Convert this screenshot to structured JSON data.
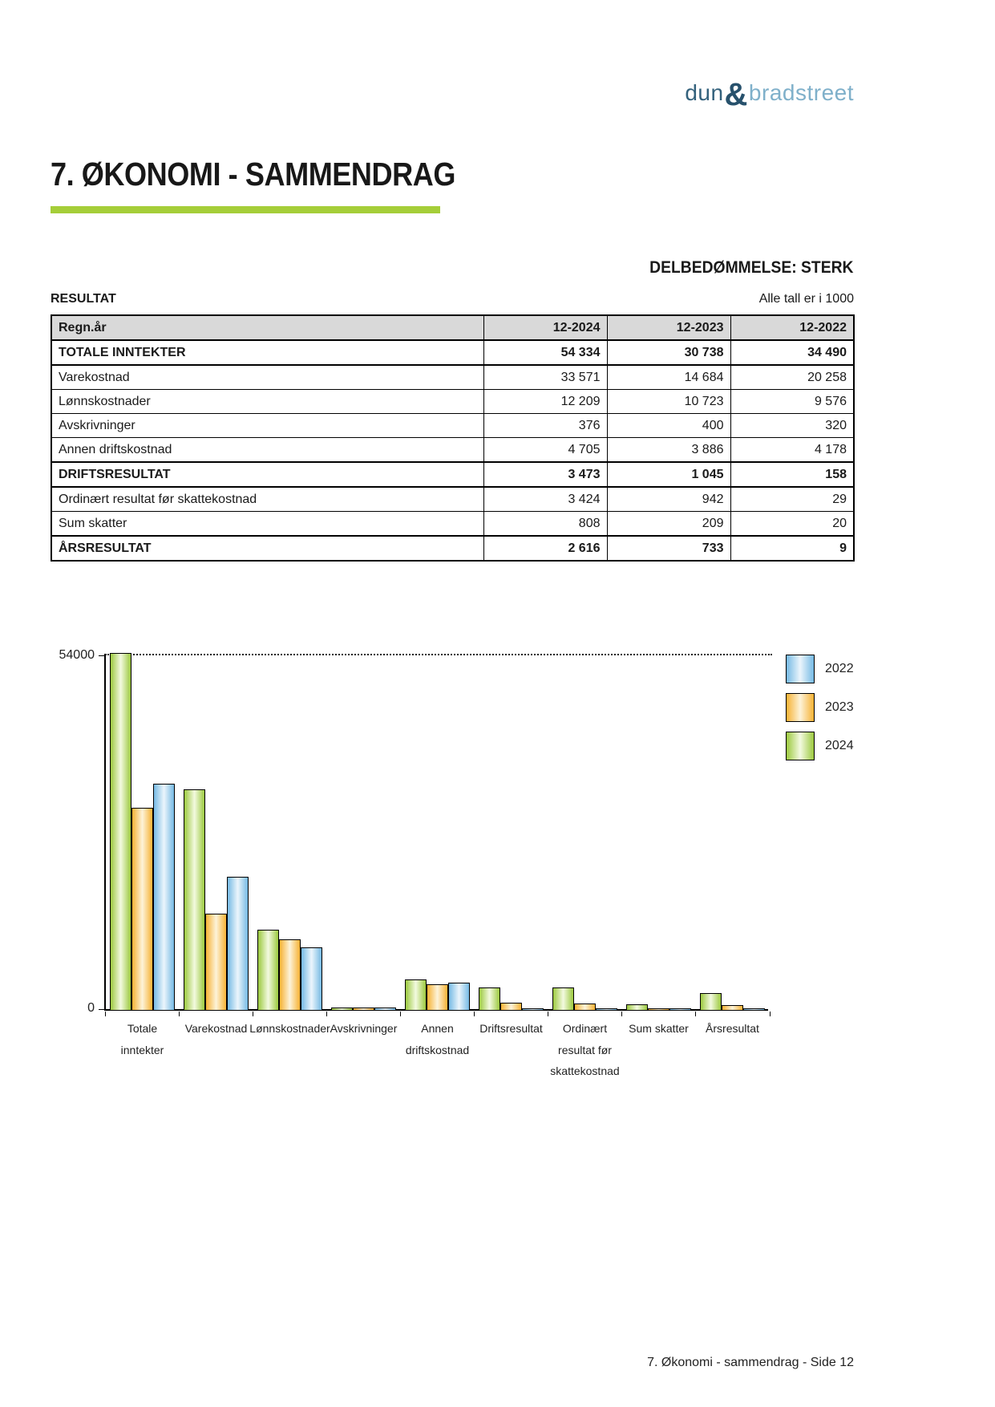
{
  "logo": {
    "dun": "dun",
    "amp": "&",
    "bradstreet": "bradstreet"
  },
  "page": {
    "title": "7. ØKONOMI - SAMMENDRAG",
    "assessment": "DELBEDØMMELSE: STERK",
    "section_label": "RESULTAT",
    "units_note": "Alle tall er i 1000",
    "footer": "7. Økonomi - sammendrag - Side 12"
  },
  "accent_color": "#a5ce39",
  "table": {
    "header": [
      "Regn.år",
      "12-2024",
      "12-2023",
      "12-2022"
    ],
    "rows": [
      {
        "label": "TOTALE INNTEKTER",
        "values": [
          "54 334",
          "30 738",
          "34 490"
        ],
        "bold": true
      },
      {
        "label": "Varekostnad",
        "values": [
          "33 571",
          "14 684",
          "20 258"
        ],
        "bold": false
      },
      {
        "label": "Lønnskostnader",
        "values": [
          "12 209",
          "10 723",
          "9 576"
        ],
        "bold": false
      },
      {
        "label": "Avskrivninger",
        "values": [
          "376",
          "400",
          "320"
        ],
        "bold": false
      },
      {
        "label": "Annen driftskostnad",
        "values": [
          "4 705",
          "3 886",
          "4 178"
        ],
        "bold": false
      },
      {
        "label": "DRIFTSRESULTAT",
        "values": [
          "3 473",
          "1 045",
          "158"
        ],
        "bold": true
      },
      {
        "label": "Ordinært resultat før skattekostnad",
        "values": [
          "3 424",
          "942",
          "29"
        ],
        "bold": false
      },
      {
        "label": "Sum skatter",
        "values": [
          "808",
          "209",
          "20"
        ],
        "bold": false
      },
      {
        "label": "ÅRSRESULTAT",
        "values": [
          "2 616",
          "733",
          "9"
        ],
        "bold": true
      }
    ]
  },
  "chart_data": {
    "type": "bar",
    "title": "",
    "xlabel": "",
    "ylabel": "",
    "units": "1000 NOK",
    "categories": [
      "Totale inntekter",
      "Varekostnad",
      "Lønnskostnader",
      "Avskrivninger",
      "Annen driftskostnad",
      "Driftsresultat",
      "Ordinært resultat før skattekostnad",
      "Sum skatter",
      "Årsresultat"
    ],
    "category_lines": [
      [
        "Totale",
        "inntekter"
      ],
      [
        "Varekostnad"
      ],
      [
        "Lønnskostnader"
      ],
      [
        "Avskrivninger"
      ],
      [
        "Annen",
        "driftskostnad"
      ],
      [
        "Driftsresultat"
      ],
      [
        "Ordinært",
        "resultat før",
        "skattekostnad"
      ],
      [
        "Sum skatter"
      ],
      [
        "Årsresultat"
      ]
    ],
    "series": [
      {
        "name": "2024",
        "values": [
          54334,
          33571,
          12209,
          376,
          4705,
          3473,
          3424,
          808,
          2616
        ],
        "color_edge": "#9cc93f",
        "color_mid": "#f3fae0"
      },
      {
        "name": "2023",
        "values": [
          30738,
          14684,
          10723,
          400,
          3886,
          1045,
          942,
          209,
          733
        ],
        "color_edge": "#f6b234",
        "color_mid": "#fdf3d9"
      },
      {
        "name": "2022",
        "values": [
          34490,
          20258,
          9576,
          320,
          4178,
          158,
          29,
          20,
          9
        ],
        "color_edge": "#76bae4",
        "color_mid": "#ebf5fc"
      }
    ],
    "bar_order": [
      "2024",
      "2023",
      "2022"
    ],
    "legend_order": [
      "2022",
      "2023",
      "2024"
    ],
    "ylim": [
      0,
      54000
    ],
    "ytick_labels": [
      "54000",
      "0"
    ],
    "gridline_value": 54000,
    "gridline_style": "dotted",
    "grid": "top-only",
    "legend_position": "right"
  }
}
